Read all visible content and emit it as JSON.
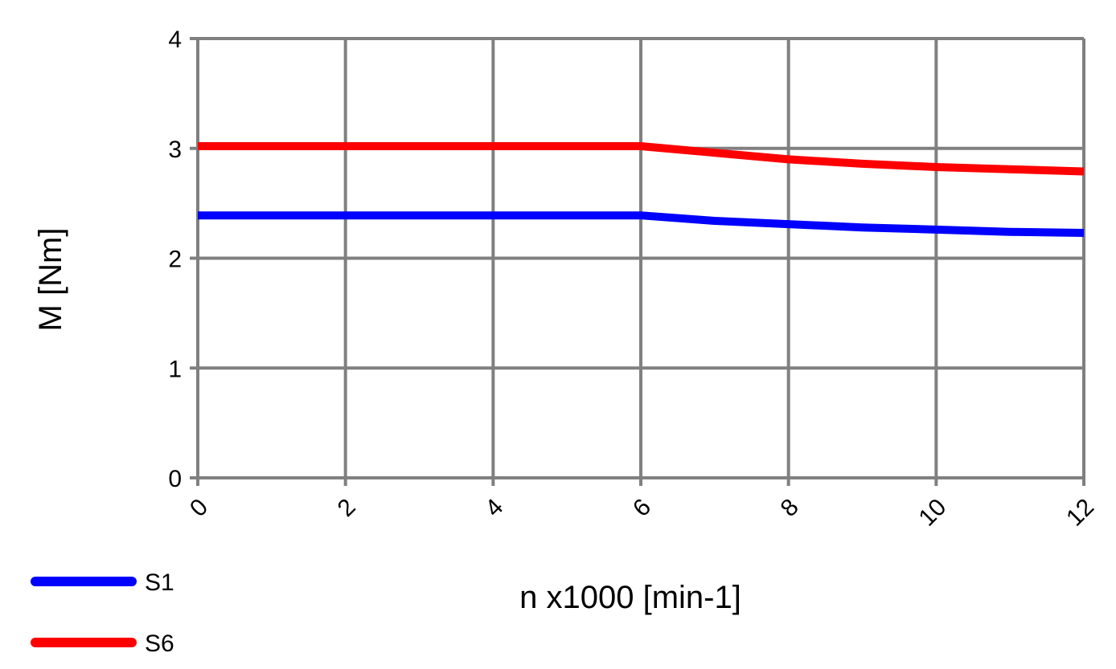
{
  "chart_data": {
    "type": "line",
    "title": "",
    "xlabel": "n x1000 [min-1]",
    "ylabel": "M [Nm]",
    "xlim": [
      0,
      12
    ],
    "ylim": [
      0,
      4
    ],
    "xticks": [
      0,
      2,
      4,
      6,
      8,
      10,
      12
    ],
    "yticks": [
      0,
      1,
      2,
      3,
      4
    ],
    "x_tick_labels": [
      "0",
      "2",
      "4",
      "6",
      "8",
      "10",
      "12"
    ],
    "y_tick_labels": [
      "0",
      "1",
      "2",
      "3",
      "4"
    ],
    "grid": true,
    "legend_position": "bottom-left",
    "series": [
      {
        "name": "S1",
        "color": "#0000ff",
        "x": [
          0,
          6,
          7,
          8,
          9,
          10,
          11,
          12
        ],
        "y": [
          2.39,
          2.39,
          2.34,
          2.31,
          2.28,
          2.26,
          2.24,
          2.23
        ]
      },
      {
        "name": "S6",
        "color": "#ff0000",
        "x": [
          0,
          6,
          7,
          8,
          9,
          10,
          11,
          12
        ],
        "y": [
          3.02,
          3.02,
          2.96,
          2.9,
          2.86,
          2.83,
          2.81,
          2.79
        ]
      }
    ]
  },
  "colors": {
    "grid": "#808080",
    "axis": "#808080",
    "text": "#000000"
  }
}
